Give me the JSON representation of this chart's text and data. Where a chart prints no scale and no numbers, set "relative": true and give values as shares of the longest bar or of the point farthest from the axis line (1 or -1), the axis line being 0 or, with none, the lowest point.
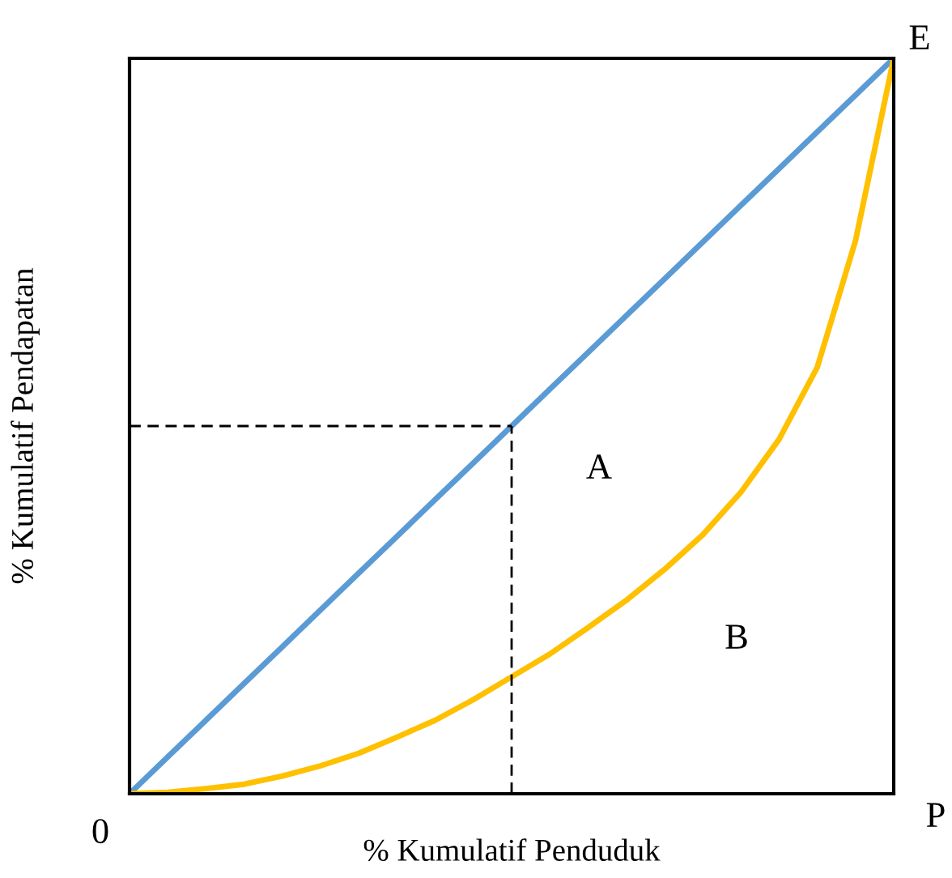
{
  "chart_data": {
    "type": "line",
    "relative": true,
    "xlabel": "% Kumulatif Penduduk",
    "ylabel": "% Kumulatif Pendapatan",
    "marker": "none",
    "categories": [
      null,
      null,
      null,
      null,
      null,
      null,
      null,
      null,
      null,
      null,
      null,
      null,
      null,
      null,
      null,
      null,
      null,
      null,
      null,
      null,
      null
    ],
    "series": [
      {
        "color": "#5b9bd5",
        "values": [
          0,
          0.05,
          0.1,
          0.15,
          0.2,
          0.25,
          0.3,
          0.35,
          0.4,
          0.45,
          0.5,
          0.55,
          0.6,
          0.65,
          0.7,
          0.75,
          0.8,
          0.85,
          0.9,
          0.95,
          1
        ]
      },
      {
        "color": "#ffc000",
        "values": [
          0,
          0.002,
          0.007,
          0.013,
          0.024,
          0.038,
          0.055,
          0.077,
          0.1,
          0.128,
          0.159,
          0.19,
          0.226,
          0.263,
          0.305,
          0.352,
          0.41,
          0.482,
          0.58,
          0.752,
          1
        ]
      },
      {
        "color": "#000000",
        "line_style": "dashed",
        "values": [
          0.5,
          0.5,
          0.5,
          0.5,
          0.5,
          0.5,
          0.5,
          0.5,
          0.5,
          0.5,
          0.5,
          null,
          null,
          null,
          null,
          null,
          null,
          null,
          null,
          null,
          null
        ]
      }
    ],
    "annotations": [
      "A",
      "B",
      "0",
      "E",
      "P"
    ]
  }
}
